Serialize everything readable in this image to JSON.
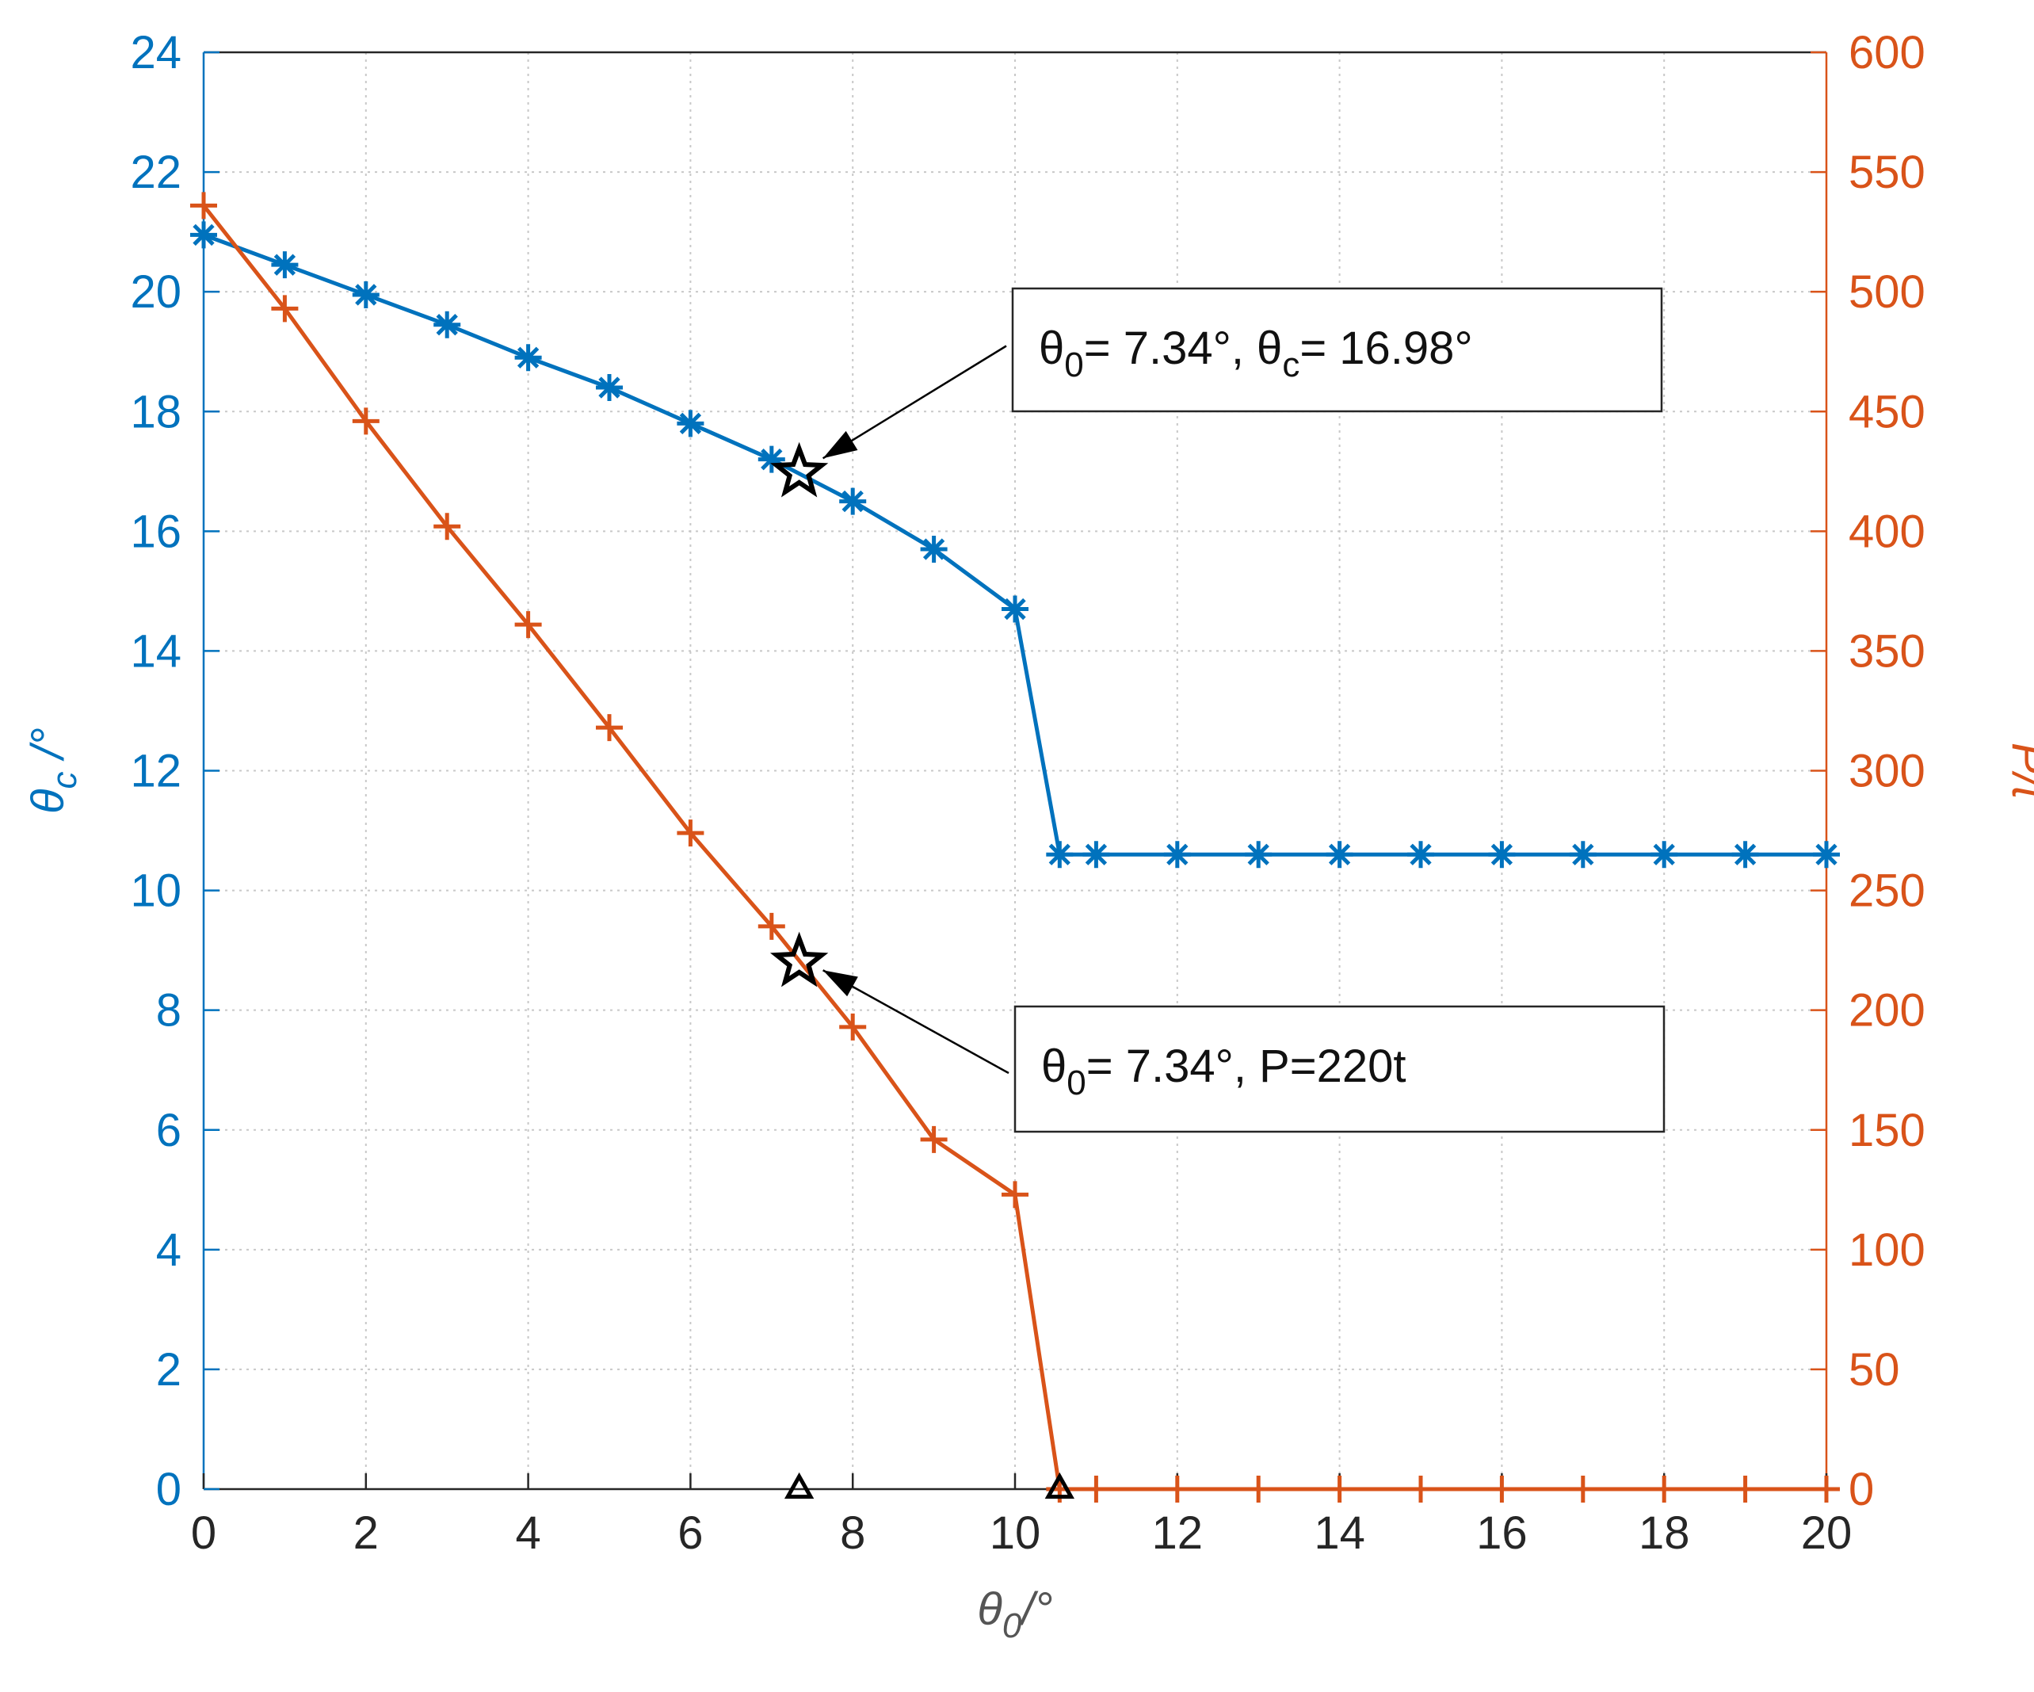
{
  "chart_data": {
    "type": "line",
    "x": [
      0,
      1,
      2,
      3,
      4,
      5,
      6,
      7,
      8,
      9,
      10,
      10.55,
      11,
      12,
      13,
      14,
      15,
      16,
      17,
      18,
      19,
      20
    ],
    "series": [
      {
        "color": "#0072BD",
        "marker": "asterisk",
        "axis": "y",
        "values": [
          20.95,
          20.45,
          19.95,
          19.45,
          18.9,
          18.4,
          17.8,
          17.2,
          16.5,
          15.7,
          14.7,
          10.6,
          10.6,
          10.6,
          10.6,
          10.6,
          10.6,
          10.6,
          10.6,
          10.6,
          10.6,
          10.6
        ]
      },
      {
        "color": "#D95319",
        "marker": "plus",
        "axis": "y2",
        "values": [
          536,
          493,
          446,
          402,
          361,
          318,
          274,
          235,
          193,
          146,
          123,
          0,
          0,
          0,
          0,
          0,
          0,
          0,
          0,
          0,
          0,
          0
        ]
      }
    ],
    "xlim": [
      0,
      20
    ],
    "xticks": [
      0,
      2,
      4,
      6,
      8,
      10,
      12,
      14,
      16,
      18,
      20
    ],
    "ylim": [
      0,
      24
    ],
    "yticks": [
      0,
      2,
      4,
      6,
      8,
      10,
      12,
      14,
      16,
      18,
      20,
      22,
      24
    ],
    "y2lim": [
      0,
      600
    ],
    "y2ticks": [
      0,
      50,
      100,
      150,
      200,
      250,
      300,
      350,
      400,
      450,
      500,
      550,
      600
    ],
    "grid": true,
    "xlabel": [
      {
        "t": "θ"
      },
      {
        "sub": "0"
      },
      {
        "t": "/°"
      }
    ],
    "ylabel": [
      {
        "t": "θ"
      },
      {
        "sub": "c"
      },
      {
        "t": " /°"
      }
    ],
    "y2label": [
      {
        "t": "P/t"
      }
    ],
    "annotations": [
      {
        "x": 7.34,
        "y": 16.98,
        "axis": "y",
        "segments": [
          {
            "t": "θ"
          },
          {
            "sub": "0"
          },
          {
            "t": "= 7.34°, θ"
          },
          {
            "sub": "c"
          },
          {
            "t": "= 16.98°"
          }
        ]
      },
      {
        "x": 7.34,
        "y": 220,
        "axis": "y2",
        "segments": [
          {
            "t": "θ"
          },
          {
            "sub": "0"
          },
          {
            "t": "= 7.34°, P=220t"
          }
        ]
      }
    ],
    "markers": [
      {
        "x": 7.34,
        "y": 0,
        "shape": "triangle",
        "color": "#000000"
      },
      {
        "x": 10.55,
        "y": 0,
        "shape": "triangle",
        "color": "#000000"
      }
    ]
  }
}
